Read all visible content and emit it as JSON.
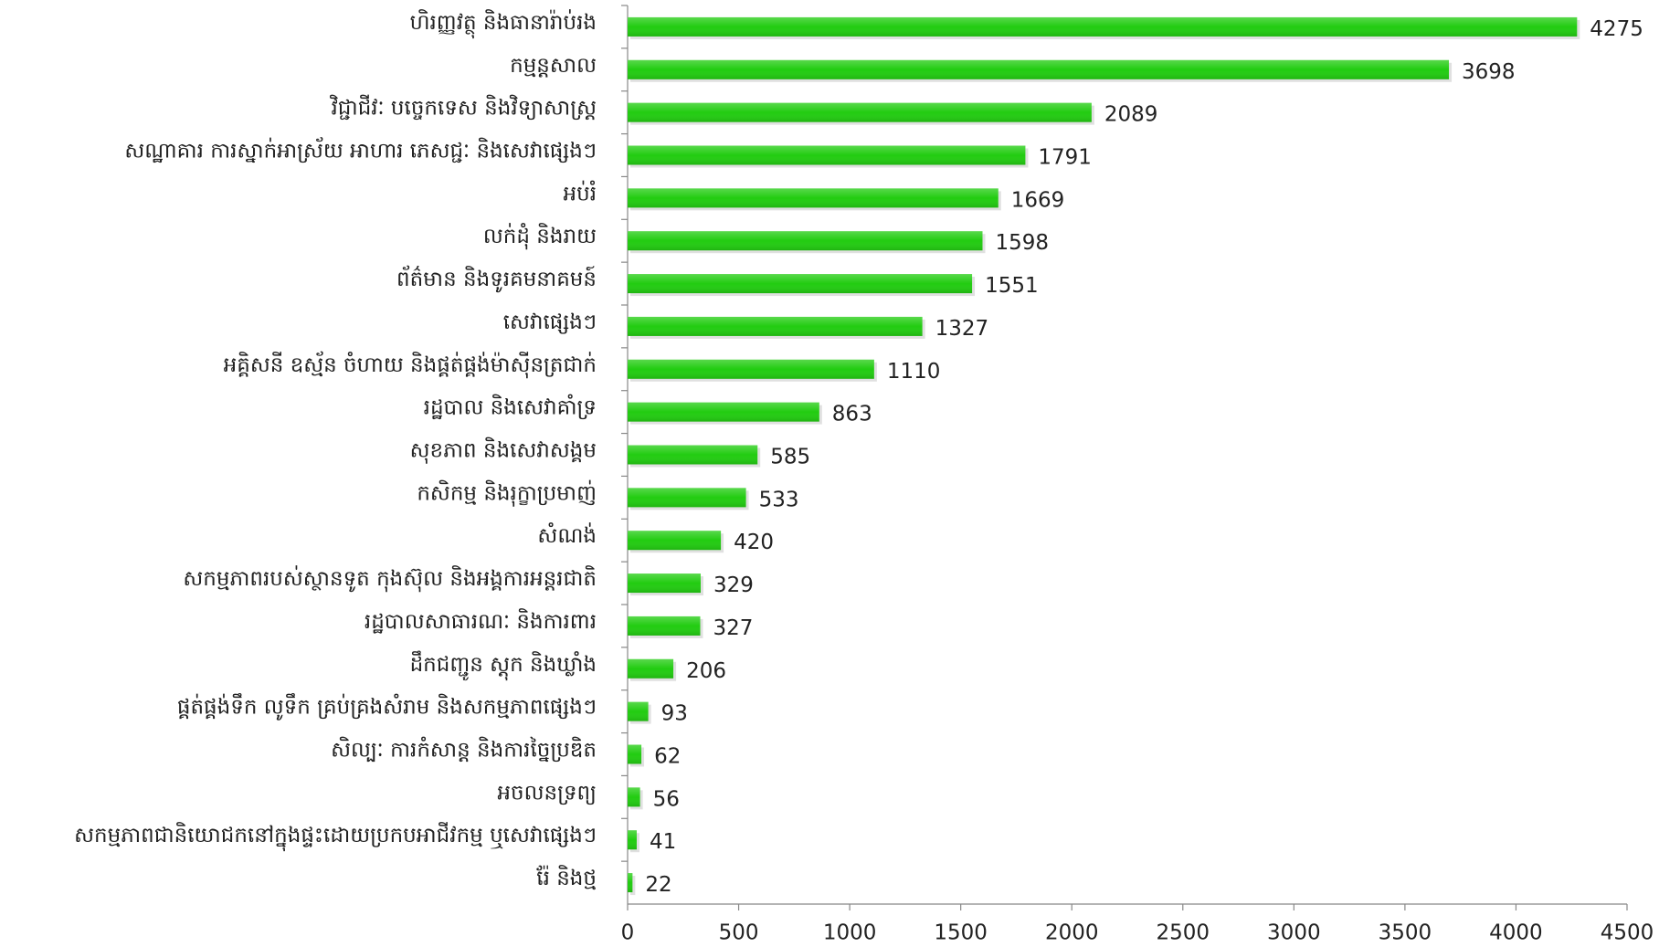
{
  "chart_data": {
    "type": "barh",
    "categories": [
      "ហិរញ្ញវត្ថុ និងធានារ៉ាប់រង",
      "កម្មន្តសាល",
      "វិជ្ជាជីវៈ បច្ចេកទេស និងវិទ្យាសាស្ត្រ",
      "សណ្ឋាគារ ការស្នាក់អាស្រ័យ អាហារ ភេសជ្ជៈ និងសេវាផ្សេងៗ",
      "អប់រំ",
      "លក់ដុំ និងរាយ",
      "ព័ត៌មាន និងទូរគមនាគមន៍",
      "សេវាផ្សេងៗ",
      "អគ្គិសនី ឧស្ម័ន ចំហាយ និងផ្គត់ផ្គង់ម៉ាស៊ីនត្រជាក់",
      "រដ្ឋបាល និងសេវាគាំទ្រ",
      "សុខភាព និងសេវាសង្គម",
      "កសិកម្ម និងរុក្ខាប្រមាញ់",
      "សំណង់",
      "សកម្មភាពរបស់ស្ថានទូត កុងស៊ុល និងអង្គការអន្តរជាតិ",
      "រដ្ឋបាលសាធារណៈ និងការពារ",
      "ដឹកជញ្ជូន ស្តុក និងឃ្លាំង",
      "ផ្គត់ផ្គង់ទឹក លូទឹក គ្រប់គ្រងសំរាម និងសកម្មភាពផ្សេងៗ",
      "សិល្បៈ ការកំសាន្ត និងការច្នៃប្រឌិត",
      "អចលនទ្រព្យ",
      "សកម្មភាពជានិយោជកនៅក្នុងផ្ទះដោយប្រកបអាជីវកម្ម ឬសេវាផ្សេងៗ",
      "រ៉ែ និងថ្ម"
    ],
    "values": [
      4275,
      3698,
      2089,
      1791,
      1669,
      1598,
      1551,
      1327,
      1110,
      863,
      585,
      533,
      420,
      329,
      327,
      206,
      93,
      62,
      56,
      41,
      22
    ],
    "color": "#22cc11",
    "xlim": [
      0,
      4500
    ],
    "xticks": [
      0,
      500,
      1000,
      1500,
      2000,
      2500,
      3000,
      3500,
      4000,
      4500
    ]
  }
}
